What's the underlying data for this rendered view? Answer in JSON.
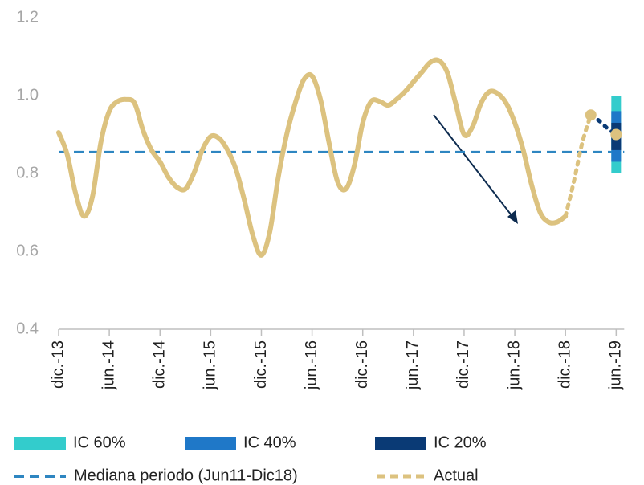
{
  "chart_data": {
    "type": "line",
    "categories": [
      "dic.-13",
      null,
      null,
      null,
      null,
      null,
      "jun.-14",
      null,
      null,
      null,
      null,
      null,
      "dic.-14",
      null,
      null,
      null,
      null,
      null,
      "jun.-15",
      null,
      null,
      null,
      null,
      null,
      "dic.-15",
      null,
      null,
      null,
      null,
      null,
      "jun.-16",
      null,
      null,
      null,
      null,
      null,
      "dic.-16",
      null,
      null,
      null,
      null,
      null,
      "jun.-17",
      null,
      null,
      null,
      null,
      null,
      "dic.-17",
      null,
      null,
      null,
      null,
      null,
      "jun.-18",
      null,
      null,
      null,
      null,
      null,
      "dic.-18",
      null,
      null,
      null,
      null,
      null,
      "jun.-19"
    ],
    "series": [
      {
        "color": "#dcc27f",
        "style": "solid",
        "values": [
          0.905,
          0.85,
          0.75,
          0.69,
          0.74,
          0.88,
          0.96,
          0.985,
          0.99,
          0.98,
          0.91,
          0.86,
          0.83,
          0.79,
          0.765,
          0.76,
          0.8,
          0.86,
          0.895,
          0.89,
          0.86,
          0.81,
          0.73,
          0.64,
          0.59,
          0.65,
          0.79,
          0.9,
          0.98,
          1.04,
          1.05,
          0.99,
          0.88,
          0.78,
          0.76,
          0.82,
          0.93,
          0.985,
          0.985,
          0.975,
          0.99,
          1.01,
          1.035,
          1.06,
          1.085,
          1.09,
          1.06,
          0.98,
          0.9,
          0.92,
          0.98,
          1.01,
          1.005,
          0.98,
          0.93,
          0.86,
          0.77,
          0.7,
          0.675,
          0.675,
          0.69,
          null,
          null,
          null,
          null,
          null,
          null
        ]
      },
      {
        "name": "Actual",
        "color": "#dcc27f",
        "style": "dashed",
        "values": [
          null,
          null,
          null,
          null,
          null,
          null,
          null,
          null,
          null,
          null,
          null,
          null,
          null,
          null,
          null,
          null,
          null,
          null,
          null,
          null,
          null,
          null,
          null,
          null,
          null,
          null,
          null,
          null,
          null,
          null,
          null,
          null,
          null,
          null,
          null,
          null,
          null,
          null,
          null,
          null,
          null,
          null,
          null,
          null,
          null,
          null,
          null,
          null,
          null,
          null,
          null,
          null,
          null,
          null,
          null,
          null,
          null,
          null,
          null,
          null,
          0.69,
          0.78,
          0.88,
          0.95,
          null,
          null,
          null
        ]
      },
      {
        "color": "#0a3a75",
        "style": "dotted",
        "values": [
          null,
          null,
          null,
          null,
          null,
          null,
          null,
          null,
          null,
          null,
          null,
          null,
          null,
          null,
          null,
          null,
          null,
          null,
          null,
          null,
          null,
          null,
          null,
          null,
          null,
          null,
          null,
          null,
          null,
          null,
          null,
          null,
          null,
          null,
          null,
          null,
          null,
          null,
          null,
          null,
          null,
          null,
          null,
          null,
          null,
          null,
          null,
          null,
          null,
          null,
          null,
          null,
          null,
          null,
          null,
          null,
          null,
          null,
          null,
          null,
          null,
          null,
          null,
          0.95,
          0.935,
          0.915,
          0.9
        ]
      }
    ],
    "markers": [
      {
        "index": 63,
        "value": 0.95,
        "color": "#dcc27f"
      },
      {
        "index": 66,
        "value": 0.9,
        "color": "#dcc27f"
      }
    ],
    "intervals": [
      {
        "name": "IC 60%",
        "color": "#33cccc",
        "index": 66,
        "low": 0.8,
        "high": 1.0
      },
      {
        "name": "IC 40%",
        "color": "#1f78c8",
        "index": 66,
        "low": 0.83,
        "high": 0.96
      },
      {
        "name": "IC 20%",
        "color": "#0a3a75",
        "index": 66,
        "low": 0.86,
        "high": 0.93
      }
    ],
    "median": {
      "name": "Mediana periodo (Jun11-Dic18)",
      "value": 0.855,
      "color": "#2e86c1"
    },
    "ylim": [
      0.4,
      1.2
    ],
    "yticks": [
      0.4,
      0.6,
      0.8,
      1.0,
      1.2
    ]
  }
}
